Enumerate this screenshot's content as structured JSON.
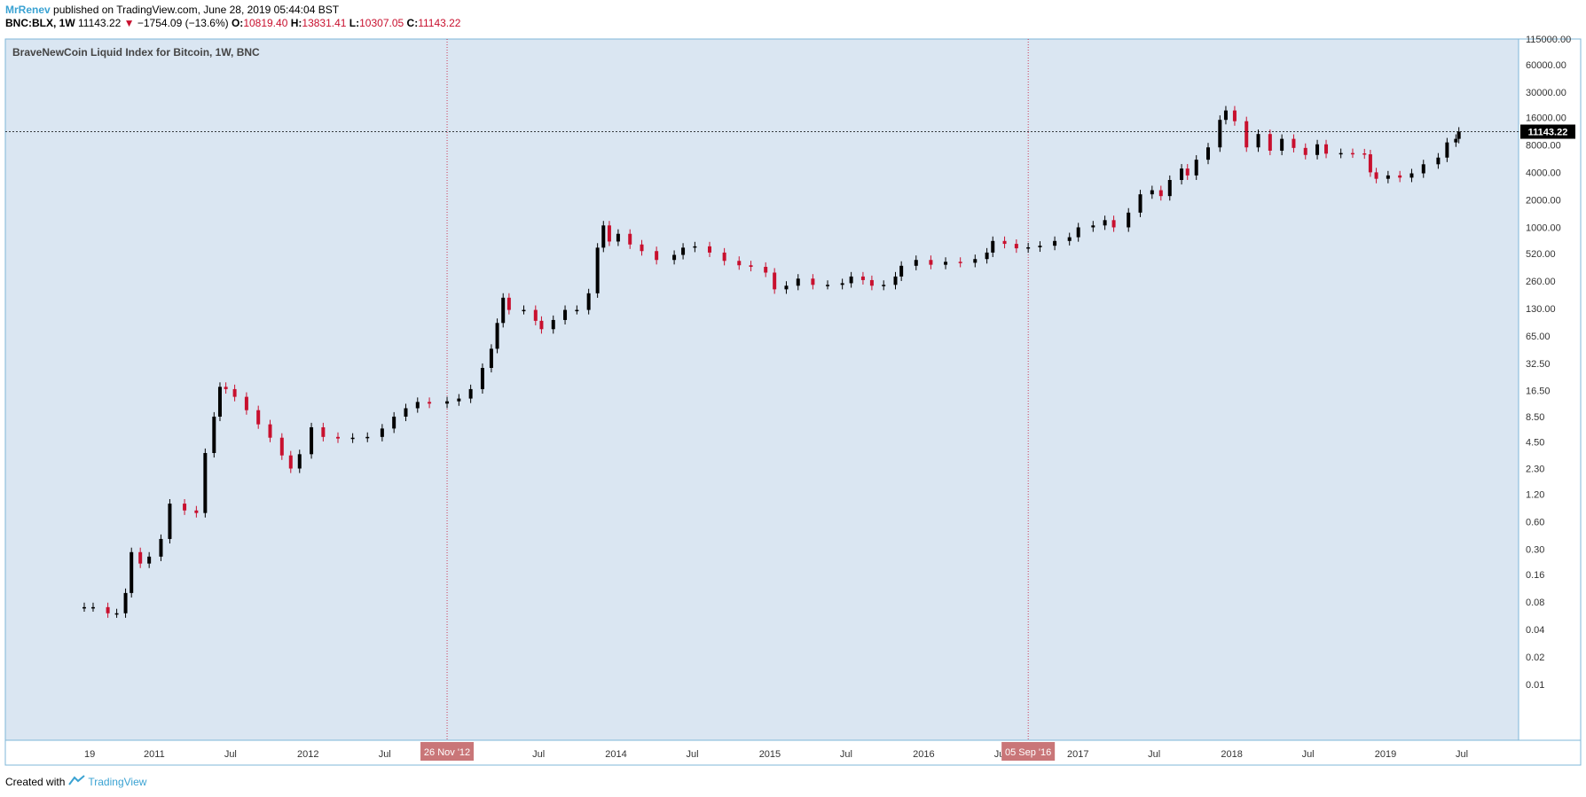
{
  "header": {
    "user": "MrRenev",
    "published_text": "published on TradingView.com, June 28, 2019 05:44:04 BST",
    "symbol": "BNC:BLX, 1W",
    "last_price": "11143.22",
    "change_arrow": "▼",
    "change": "−1754.09 (−13.6%)",
    "o_label": "O:",
    "o_value": "10819.40",
    "h_label": "H:",
    "h_value": "13831.41",
    "l_label": "L:",
    "l_value": "10307.05",
    "c_label": "C:",
    "c_value": "11143.22"
  },
  "footer": {
    "created_with": "Created with",
    "brand": "TradingView"
  },
  "colors": {
    "plot_bg": "#dae6f2",
    "up": "#000000",
    "down": "#c8102e",
    "border": "#7fb7d8",
    "marker_bg": "#c97678"
  },
  "chart_data": {
    "type": "candlestick",
    "title": "BraveNewCoin Liquid Index for Bitcoin, 1W, BNC",
    "y_scale": "log",
    "ylim": [
      0.01,
      115000
    ],
    "y_ticks": [
      "115000.00",
      "60000.00",
      "30000.00",
      "16000.00",
      "8000.00",
      "4000.00",
      "2000.00",
      "1000.00",
      "520.00",
      "260.00",
      "130.00",
      "65.00",
      "32.50",
      "16.50",
      "8.50",
      "4.50",
      "2.30",
      "1.20",
      "0.60",
      "0.30",
      "0.16",
      "0.08",
      "0.04",
      "0.02",
      "0.01"
    ],
    "x_ticks": [
      "19",
      "2011",
      "Jul",
      "2012",
      "Jul",
      "2013",
      "Jul",
      "2014",
      "Jul",
      "2015",
      "Jul",
      "2016",
      "Jul",
      "2017",
      "Jul",
      "2018",
      "Jul",
      "2019",
      "Jul"
    ],
    "last_price_label": "11143.22",
    "markers": [
      "26 Nov '12",
      "05 Sep '16"
    ],
    "points": [
      {
        "date": "2010-07-19",
        "price": 0.07
      },
      {
        "date": "2010-08-09",
        "price": 0.07
      },
      {
        "date": "2010-09-13",
        "price": 0.06
      },
      {
        "date": "2010-10-04",
        "price": 0.06
      },
      {
        "date": "2010-10-25",
        "price": 0.1
      },
      {
        "date": "2010-11-08",
        "price": 0.28
      },
      {
        "date": "2010-11-29",
        "price": 0.21
      },
      {
        "date": "2010-12-20",
        "price": 0.25
      },
      {
        "date": "2011-01-17",
        "price": 0.39
      },
      {
        "date": "2011-02-07",
        "price": 0.95
      },
      {
        "date": "2011-03-14",
        "price": 0.8
      },
      {
        "date": "2011-04-11",
        "price": 0.75
      },
      {
        "date": "2011-05-02",
        "price": 3.4
      },
      {
        "date": "2011-05-23",
        "price": 8.5
      },
      {
        "date": "2011-06-06",
        "price": 18
      },
      {
        "date": "2011-06-20",
        "price": 17
      },
      {
        "date": "2011-07-11",
        "price": 14
      },
      {
        "date": "2011-08-08",
        "price": 10
      },
      {
        "date": "2011-09-05",
        "price": 7
      },
      {
        "date": "2011-10-03",
        "price": 5
      },
      {
        "date": "2011-10-31",
        "price": 3.2
      },
      {
        "date": "2011-11-21",
        "price": 2.3
      },
      {
        "date": "2011-12-12",
        "price": 3.3
      },
      {
        "date": "2012-01-09",
        "price": 6.5
      },
      {
        "date": "2012-02-06",
        "price": 5.1
      },
      {
        "date": "2012-03-12",
        "price": 4.9
      },
      {
        "date": "2012-04-16",
        "price": 5
      },
      {
        "date": "2012-05-21",
        "price": 5.1
      },
      {
        "date": "2012-06-25",
        "price": 6.3
      },
      {
        "date": "2012-07-23",
        "price": 8.5
      },
      {
        "date": "2012-08-20",
        "price": 10.5
      },
      {
        "date": "2012-09-17",
        "price": 12.3
      },
      {
        "date": "2012-10-15",
        "price": 11.8
      },
      {
        "date": "2012-11-26",
        "price": 12.5
      },
      {
        "date": "2012-12-24",
        "price": 13.4
      },
      {
        "date": "2013-01-21",
        "price": 17
      },
      {
        "date": "2013-02-18",
        "price": 29
      },
      {
        "date": "2013-03-11",
        "price": 47
      },
      {
        "date": "2013-03-25",
        "price": 90
      },
      {
        "date": "2013-04-08",
        "price": 170
      },
      {
        "date": "2013-04-22",
        "price": 125
      },
      {
        "date": "2013-05-27",
        "price": 125
      },
      {
        "date": "2013-06-24",
        "price": 95
      },
      {
        "date": "2013-07-08",
        "price": 77
      },
      {
        "date": "2013-08-05",
        "price": 97
      },
      {
        "date": "2013-09-02",
        "price": 125
      },
      {
        "date": "2013-09-30",
        "price": 125
      },
      {
        "date": "2013-10-28",
        "price": 190
      },
      {
        "date": "2013-11-18",
        "price": 600
      },
      {
        "date": "2013-12-02",
        "price": 1050
      },
      {
        "date": "2013-12-16",
        "price": 700
      },
      {
        "date": "2014-01-06",
        "price": 850
      },
      {
        "date": "2014-02-03",
        "price": 650
      },
      {
        "date": "2014-03-03",
        "price": 550
      },
      {
        "date": "2014-04-07",
        "price": 440
      },
      {
        "date": "2014-05-19",
        "price": 500
      },
      {
        "date": "2014-06-09",
        "price": 600
      },
      {
        "date": "2014-07-07",
        "price": 620
      },
      {
        "date": "2014-08-11",
        "price": 530
      },
      {
        "date": "2014-09-15",
        "price": 430
      },
      {
        "date": "2014-10-20",
        "price": 385
      },
      {
        "date": "2014-11-17",
        "price": 370
      },
      {
        "date": "2014-12-22",
        "price": 320
      },
      {
        "date": "2015-01-12",
        "price": 210
      },
      {
        "date": "2015-02-09",
        "price": 230
      },
      {
        "date": "2015-03-09",
        "price": 275
      },
      {
        "date": "2015-04-13",
        "price": 235
      },
      {
        "date": "2015-05-18",
        "price": 235
      },
      {
        "date": "2015-06-22",
        "price": 245
      },
      {
        "date": "2015-07-13",
        "price": 290
      },
      {
        "date": "2015-08-10",
        "price": 265
      },
      {
        "date": "2015-08-31",
        "price": 230
      },
      {
        "date": "2015-09-28",
        "price": 235
      },
      {
        "date": "2015-10-26",
        "price": 290
      },
      {
        "date": "2015-11-09",
        "price": 380
      },
      {
        "date": "2015-12-14",
        "price": 440
      },
      {
        "date": "2016-01-18",
        "price": 390
      },
      {
        "date": "2016-02-22",
        "price": 420
      },
      {
        "date": "2016-03-28",
        "price": 410
      },
      {
        "date": "2016-05-02",
        "price": 450
      },
      {
        "date": "2016-05-30",
        "price": 530
      },
      {
        "date": "2016-06-13",
        "price": 710
      },
      {
        "date": "2016-07-11",
        "price": 660
      },
      {
        "date": "2016-08-08",
        "price": 590
      },
      {
        "date": "2016-09-05",
        "price": 605
      },
      {
        "date": "2016-10-03",
        "price": 630
      },
      {
        "date": "2016-11-07",
        "price": 710
      },
      {
        "date": "2016-12-12",
        "price": 780
      },
      {
        "date": "2017-01-02",
        "price": 1000
      },
      {
        "date": "2017-02-06",
        "price": 1050
      },
      {
        "date": "2017-03-06",
        "price": 1200
      },
      {
        "date": "2017-03-27",
        "price": 1000
      },
      {
        "date": "2017-05-01",
        "price": 1450
      },
      {
        "date": "2017-05-29",
        "price": 2300
      },
      {
        "date": "2017-06-26",
        "price": 2550
      },
      {
        "date": "2017-07-17",
        "price": 2200
      },
      {
        "date": "2017-08-07",
        "price": 3300
      },
      {
        "date": "2017-09-04",
        "price": 4400
      },
      {
        "date": "2017-09-18",
        "price": 3700
      },
      {
        "date": "2017-10-09",
        "price": 5500
      },
      {
        "date": "2017-11-06",
        "price": 7500
      },
      {
        "date": "2017-12-04",
        "price": 15000
      },
      {
        "date": "2017-12-18",
        "price": 19000
      },
      {
        "date": "2018-01-08",
        "price": 14500
      },
      {
        "date": "2018-02-05",
        "price": 7500
      },
      {
        "date": "2018-03-05",
        "price": 10500
      },
      {
        "date": "2018-04-02",
        "price": 6900
      },
      {
        "date": "2018-04-30",
        "price": 9300
      },
      {
        "date": "2018-05-28",
        "price": 7400
      },
      {
        "date": "2018-06-25",
        "price": 6200
      },
      {
        "date": "2018-07-23",
        "price": 8100
      },
      {
        "date": "2018-08-13",
        "price": 6400
      },
      {
        "date": "2018-09-17",
        "price": 6500
      },
      {
        "date": "2018-10-15",
        "price": 6450
      },
      {
        "date": "2018-11-12",
        "price": 6300
      },
      {
        "date": "2018-11-26",
        "price": 4000
      },
      {
        "date": "2018-12-10",
        "price": 3400
      },
      {
        "date": "2019-01-07",
        "price": 3700
      },
      {
        "date": "2019-02-04",
        "price": 3500
      },
      {
        "date": "2019-03-04",
        "price": 3900
      },
      {
        "date": "2019-04-01",
        "price": 4900
      },
      {
        "date": "2019-05-06",
        "price": 5800
      },
      {
        "date": "2019-05-27",
        "price": 8500
      },
      {
        "date": "2019-06-17",
        "price": 9300
      },
      {
        "date": "2019-06-24",
        "price": 11143.22
      }
    ]
  }
}
